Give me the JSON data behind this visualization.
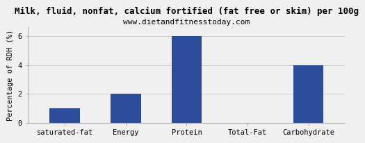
{
  "title": "Milk, fluid, nonfat, calcium fortified (fat free or skim) per 100g",
  "subtitle": "www.dietandfitnesstoday.com",
  "categories": [
    "saturated-fat",
    "Energy",
    "Protein",
    "Total-Fat",
    "Carbohydrate"
  ],
  "values": [
    1.0,
    2.0,
    6.0,
    0.0,
    4.0
  ],
  "bar_color": "#2b4d9b",
  "ylabel": "Percentage of RDH (%)",
  "ylim": [
    0,
    6.6
  ],
  "yticks": [
    0,
    2,
    4,
    6
  ],
  "background_color": "#f0f0f0",
  "plot_bg_color": "#f0f0f0",
  "grid_color": "#cccccc",
  "title_fontsize": 9,
  "subtitle_fontsize": 8,
  "ylabel_fontsize": 7.5,
  "tick_fontsize": 7.5
}
